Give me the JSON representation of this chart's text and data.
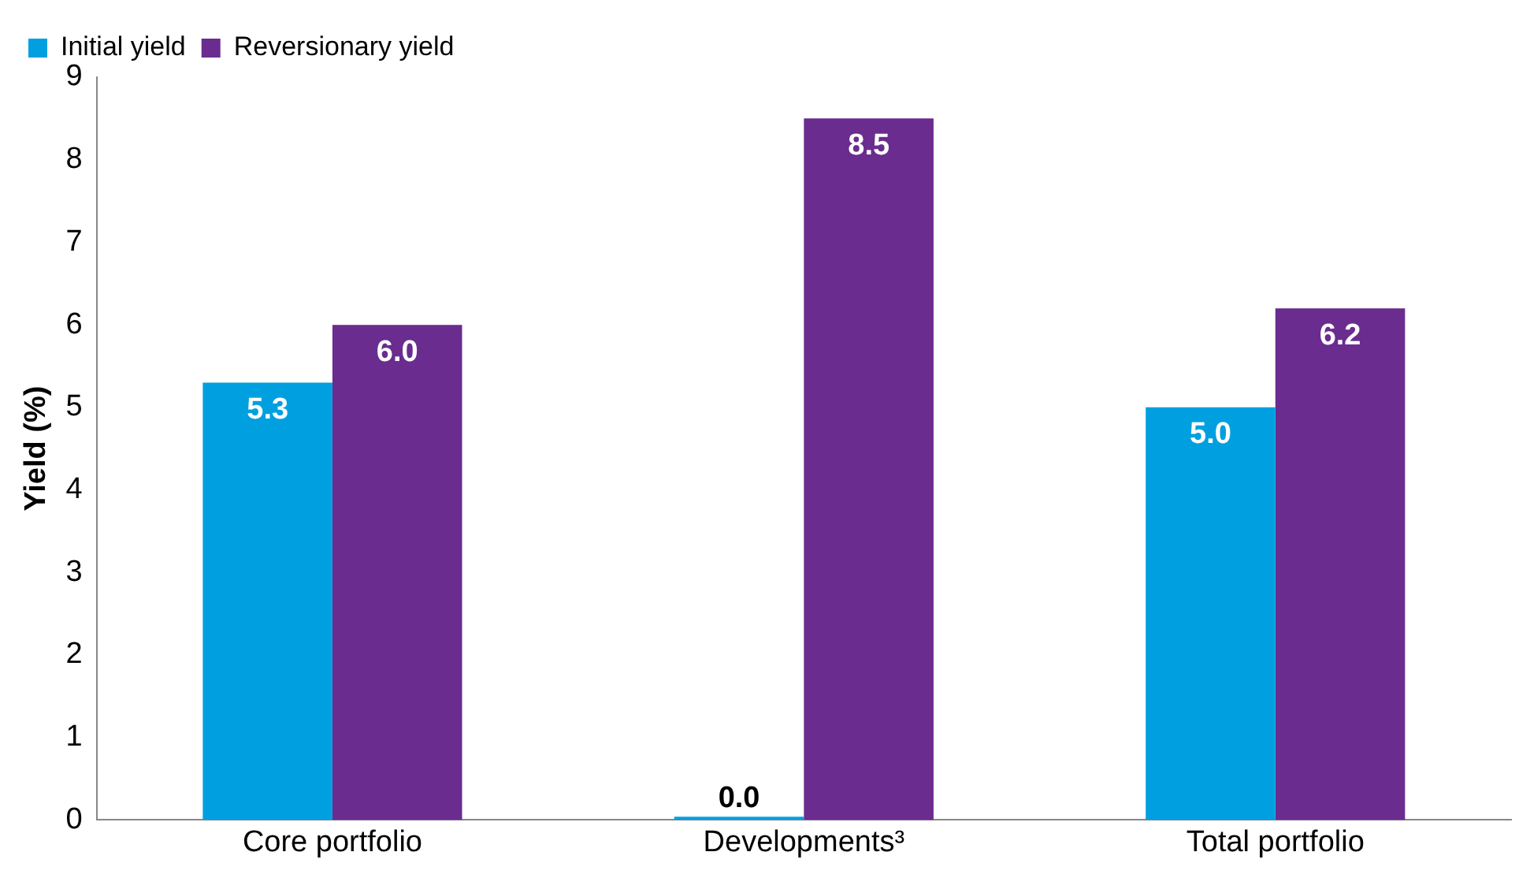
{
  "chart_data": {
    "type": "bar",
    "ylabel": "Yield (%)",
    "categories": [
      "Core portfolio",
      "Developments³",
      "Total portfolio"
    ],
    "series": [
      {
        "name": "Initial yield",
        "color": "#00a0e0",
        "values": [
          5.3,
          0.04,
          5.0
        ],
        "value_labels": [
          "5.3",
          "0.0",
          "5.0"
        ]
      },
      {
        "name": "Reversionary yield",
        "color": "#6a2c8e",
        "values": [
          6.0,
          8.5,
          6.2
        ],
        "value_labels": [
          "6.0",
          "8.5",
          "6.2"
        ]
      }
    ],
    "ylim": [
      0,
      9
    ],
    "yticks": [
      0,
      1,
      2,
      3,
      4,
      5,
      6,
      7,
      8,
      9
    ],
    "grid": false,
    "legend": "top left"
  }
}
